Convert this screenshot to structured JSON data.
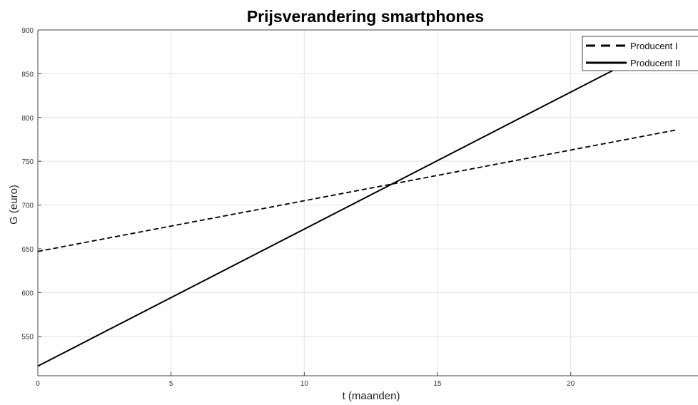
{
  "chart_data": {
    "type": "line",
    "title": "Prijsverandering smartphones",
    "xlabel": "t (maanden)",
    "ylabel": "G (euro)",
    "xlim": [
      0,
      24
    ],
    "ylim": [
      505,
      900
    ],
    "xticks": [
      0,
      5,
      10,
      15,
      20
    ],
    "yticks": [
      550,
      600,
      650,
      700,
      750,
      800,
      850,
      900
    ],
    "grid": true,
    "legend_position": "top-right",
    "series": [
      {
        "name": "Producent I",
        "style": "dashed",
        "color": "#000000",
        "x": [
          0,
          24
        ],
        "y": [
          647,
          786
        ]
      },
      {
        "name": "Producent II",
        "style": "solid",
        "color": "#000000",
        "x": [
          0,
          22.3
        ],
        "y": [
          516,
          865
        ]
      }
    ]
  }
}
